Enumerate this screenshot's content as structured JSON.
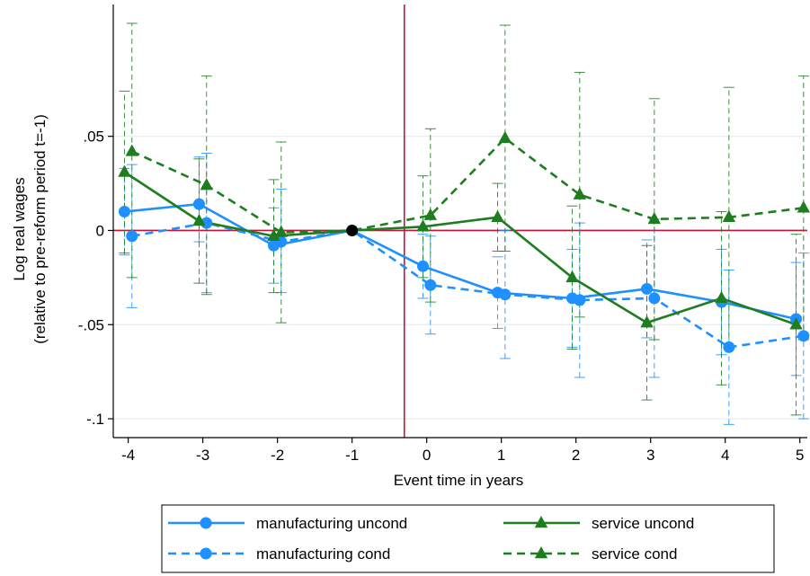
{
  "chart_data": {
    "type": "line",
    "title": "",
    "xlabel": "Event time in years",
    "ylabel_lines": [
      "Log real wages",
      "(relative to pre-reform period t=-1)"
    ],
    "xlim": [
      -4.2,
      5.1
    ],
    "ylim": [
      -0.11,
      0.12
    ],
    "xticks": [
      -4,
      -3,
      -2,
      -1,
      0,
      1,
      2,
      3,
      4,
      5
    ],
    "xtick_labels": [
      "-4",
      "-3",
      "-2",
      "-1",
      "0",
      "1",
      "2",
      "3",
      "4",
      "5"
    ],
    "yticks": [
      -0.1,
      -0.05,
      0,
      0.05
    ],
    "ytick_labels": [
      "-.1",
      "-.05",
      "0",
      ".05"
    ],
    "grid": "horizontal",
    "reference_lines": {
      "x": -0.3,
      "y": 0,
      "color": "#c0143c"
    },
    "reference_point": {
      "x": -1,
      "y": 0,
      "color": "#000000"
    },
    "legend_position": "bottom",
    "series": [
      {
        "name": "manufacturing uncond",
        "color": "#1e90ff",
        "dash": "solid",
        "marker": "circle",
        "x": [
          -4.05,
          -3.05,
          -2.05,
          -1,
          -0.05,
          0.95,
          1.95,
          2.95,
          3.95,
          4.95
        ],
        "y": [
          0.01,
          0.014,
          -0.008,
          0,
          -0.019,
          -0.033,
          -0.036,
          -0.031,
          -0.038,
          -0.047
        ],
        "ci_low": [
          -0.013,
          -0.006,
          -0.028,
          0,
          -0.036,
          -0.052,
          -0.062,
          -0.057,
          -0.066,
          -0.077
        ],
        "ci_high": [
          0.033,
          0.039,
          0.012,
          0,
          -0.002,
          -0.014,
          -0.01,
          -0.005,
          -0.01,
          -0.017
        ]
      },
      {
        "name": "manufacturing cond",
        "color": "#1e90ff",
        "dash": "dashed",
        "marker": "circle",
        "x": [
          -3.95,
          -2.95,
          -1.95,
          -1,
          0.05,
          1.05,
          2.05,
          3.05,
          4.05,
          5.05
        ],
        "y": [
          -0.003,
          0.004,
          -0.006,
          0,
          -0.029,
          -0.034,
          -0.037,
          -0.036,
          -0.062,
          -0.056
        ],
        "ci_low": [
          -0.041,
          -0.033,
          -0.033,
          0,
          -0.055,
          -0.068,
          -0.078,
          -0.078,
          -0.103,
          -0.1
        ],
        "ci_high": [
          0.035,
          0.041,
          0.022,
          0,
          -0.003,
          0,
          0.004,
          0.006,
          -0.021,
          -0.012
        ]
      },
      {
        "name": "service uncond",
        "color": "#1e7d1e",
        "dash": "solid",
        "marker": "triangle",
        "x": [
          -4.05,
          -3.05,
          -2.05,
          -1,
          -0.05,
          0.95,
          1.95,
          2.95,
          3.95,
          4.95
        ],
        "y": [
          0.031,
          0.005,
          -0.003,
          0,
          0.002,
          0.007,
          -0.025,
          -0.049,
          -0.036,
          -0.05
        ],
        "ci_low": [
          -0.012,
          -0.028,
          -0.033,
          0,
          -0.025,
          -0.011,
          -0.063,
          -0.09,
          -0.082,
          -0.098
        ],
        "ci_high": [
          0.074,
          0.038,
          0.027,
          0,
          0.029,
          0.025,
          0.013,
          -0.008,
          0.01,
          -0.002
        ]
      },
      {
        "name": "service cond",
        "color": "#1e7d1e",
        "dash": "dashed",
        "marker": "triangle",
        "x": [
          -3.95,
          -2.95,
          -1.95,
          -1,
          0.05,
          1.05,
          2.05,
          3.05,
          4.05,
          5.05
        ],
        "y": [
          0.042,
          0.024,
          -0.001,
          0,
          0.008,
          0.049,
          0.019,
          0.006,
          0.007,
          0.012
        ],
        "ci_low": [
          -0.025,
          -0.034,
          -0.049,
          0,
          -0.038,
          -0.011,
          -0.046,
          -0.058,
          -0.062,
          -0.058
        ],
        "ci_high": [
          0.11,
          0.082,
          0.047,
          0,
          0.054,
          0.109,
          0.084,
          0.07,
          0.076,
          0.082
        ]
      }
    ]
  }
}
